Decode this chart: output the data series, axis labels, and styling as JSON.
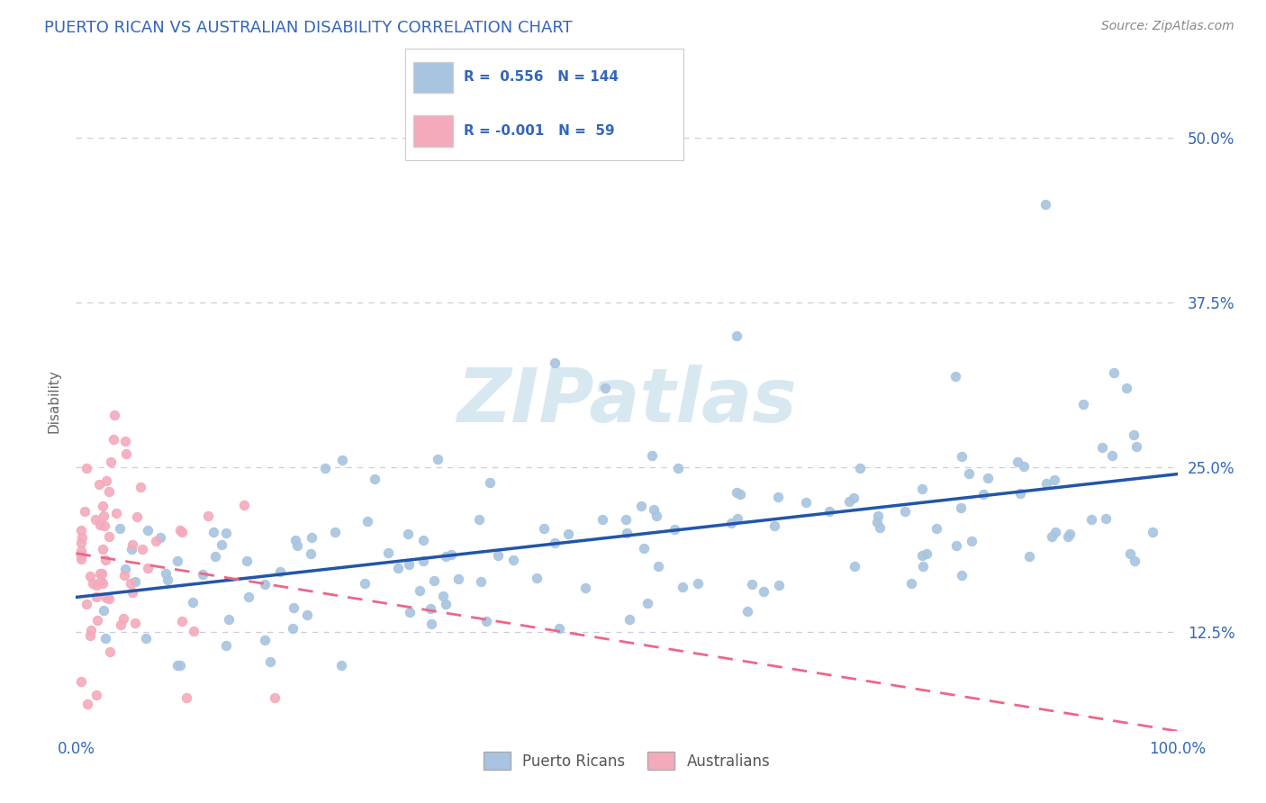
{
  "title": "PUERTO RICAN VS AUSTRALIAN DISABILITY CORRELATION CHART",
  "source_text": "Source: ZipAtlas.com",
  "ylabel": "Disability",
  "xlim": [
    0,
    100
  ],
  "ylim": [
    5,
    55
  ],
  "yticks": [
    12.5,
    25.0,
    37.5,
    50.0
  ],
  "ytick_labels": [
    "12.5%",
    "25.0%",
    "37.5%",
    "50.0%"
  ],
  "xtick_labels": [
    "0.0%",
    "100.0%"
  ],
  "blue_color": "#A8C4E0",
  "pink_color": "#F4AABB",
  "blue_line_color": "#2255AA",
  "pink_line_color": "#EE6688",
  "r_blue": 0.556,
  "n_blue": 144,
  "r_pink": -0.001,
  "n_pink": 59,
  "watermark": "ZIPatlas",
  "watermark_color": "#D8E8F0",
  "legend_blue_color": "#A8C4E0",
  "legend_pink_color": "#F4AABB",
  "title_color": "#3366BB",
  "tick_color": "#3366BB",
  "source_color": "#888888",
  "ylabel_color": "#666666",
  "grid_color": "#CCCCDD",
  "legend_border_color": "#CCCCCC"
}
